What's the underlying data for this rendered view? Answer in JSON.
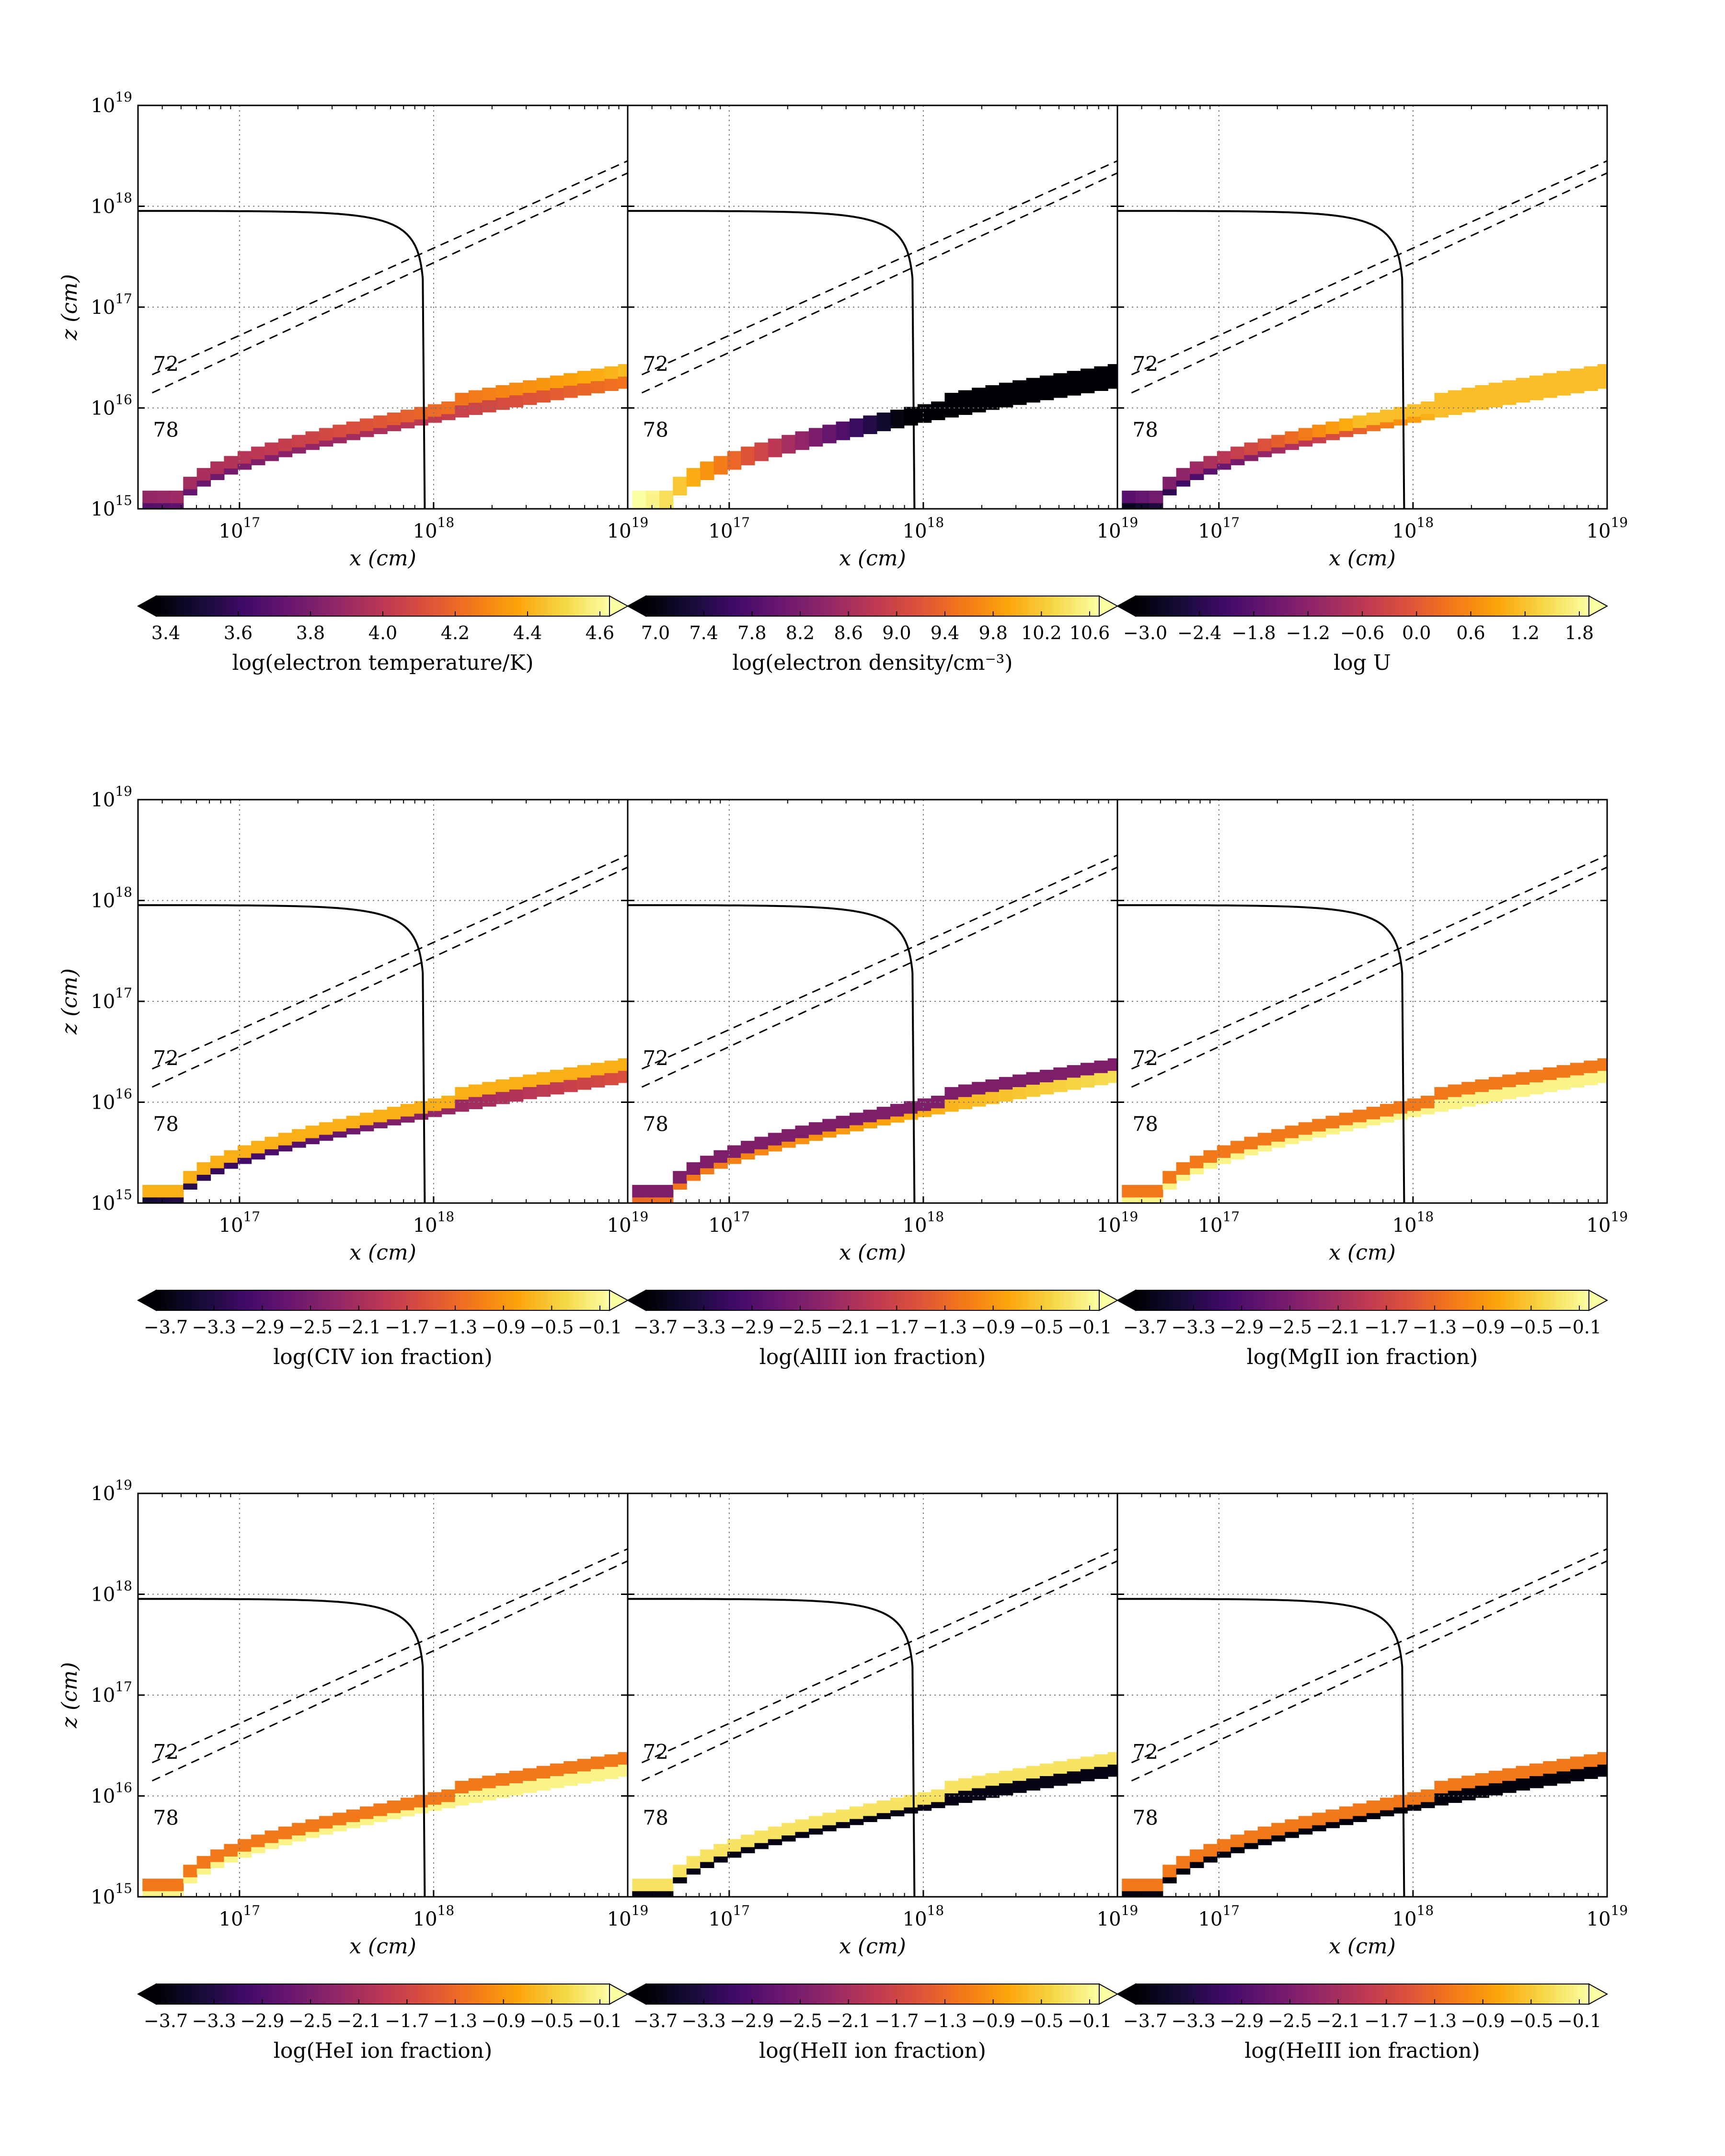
{
  "chart_data": {
    "type": "heatmap",
    "description_axes": {
      "xlabel": "x (cm)",
      "ylabel": "z (cm)",
      "xscale": "log",
      "yscale": "log",
      "xlim": [
        3e+16,
        1e+19
      ],
      "ylim": [
        1000000000000000.0,
        1e+19
      ],
      "x_ticks": [
        "10^17",
        "10^18",
        "10^19"
      ],
      "y_ticks": [
        "10^15",
        "10^16",
        "10^17",
        "10^18",
        "10^19"
      ],
      "grid": true
    },
    "annotations": [
      "72",
      "78"
    ],
    "curve_z_plateau_cm": 9e+17,
    "curve_x_asymptote_cm": 9e+17,
    "panels": [
      {
        "id": "te",
        "row": 0,
        "col": 0,
        "label": "log(electron temperature/K)",
        "ticks": [
          "3.4",
          "3.6",
          "3.8",
          "4.0",
          "4.2",
          "4.4",
          "4.6"
        ],
        "pattern": "temperature"
      },
      {
        "id": "ne",
        "row": 0,
        "col": 1,
        "label": "log(electron density/cm⁻³)",
        "ticks": [
          "7.0",
          "7.4",
          "7.8",
          "8.2",
          "8.6",
          "9.0",
          "9.4",
          "9.8",
          "10.2",
          "10.6"
        ],
        "pattern": "density"
      },
      {
        "id": "U",
        "row": 0,
        "col": 2,
        "label": "log U",
        "ticks": [
          "−3.0",
          "−2.4",
          "−1.8",
          "−1.2",
          "−0.6",
          "0.0",
          "0.6",
          "1.2",
          "1.8"
        ],
        "pattern": "ionparam"
      },
      {
        "id": "civ",
        "row": 1,
        "col": 0,
        "label": "log(CIV ion fraction)",
        "ticks": [
          "−3.7",
          "−3.3",
          "−2.9",
          "−2.5",
          "−2.1",
          "−1.7",
          "−1.3",
          "−0.9",
          "−0.5",
          "−0.1"
        ],
        "pattern": "civ"
      },
      {
        "id": "aliii",
        "row": 1,
        "col": 1,
        "label": "log(AlIII ion fraction)",
        "ticks": [
          "−3.7",
          "−3.3",
          "−2.9",
          "−2.5",
          "−2.1",
          "−1.7",
          "−1.3",
          "−0.9",
          "−0.5",
          "−0.1"
        ],
        "pattern": "aliii"
      },
      {
        "id": "mgii",
        "row": 1,
        "col": 2,
        "label": "log(MgII ion fraction)",
        "ticks": [
          "−3.7",
          "−3.3",
          "−2.9",
          "−2.5",
          "−2.1",
          "−1.7",
          "−1.3",
          "−0.9",
          "−0.5",
          "−0.1"
        ],
        "pattern": "lowion"
      },
      {
        "id": "hei",
        "row": 2,
        "col": 0,
        "label": "log(HeI ion fraction)",
        "ticks": [
          "−3.7",
          "−3.3",
          "−2.9",
          "−2.5",
          "−2.1",
          "−1.7",
          "−1.3",
          "−0.9",
          "−0.5",
          "−0.1"
        ],
        "pattern": "lowion"
      },
      {
        "id": "heii",
        "row": 2,
        "col": 1,
        "label": "log(HeII ion fraction)",
        "ticks": [
          "−3.7",
          "−3.3",
          "−2.9",
          "−2.5",
          "−2.1",
          "−1.7",
          "−1.3",
          "−0.9",
          "−0.5",
          "−0.1"
        ],
        "pattern": "heii"
      },
      {
        "id": "heiii",
        "row": 2,
        "col": 2,
        "label": "log(HeIII ion fraction)",
        "ticks": [
          "−3.7",
          "−3.3",
          "−2.9",
          "−2.5",
          "−2.1",
          "−1.7",
          "−1.3",
          "−0.9",
          "−0.5",
          "−0.1"
        ],
        "pattern": "highion"
      }
    ],
    "colormap": "inferno"
  }
}
